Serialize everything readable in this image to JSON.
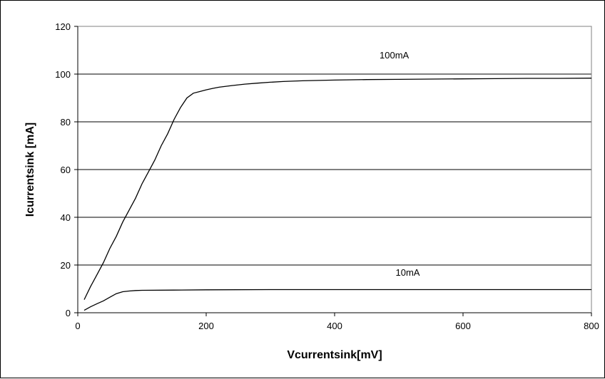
{
  "chart_data": {
    "type": "line",
    "title": "",
    "xlabel": "Vcurrentsink[mV]",
    "ylabel": "Icurrentsink [mA]",
    "xlim": [
      0,
      800
    ],
    "ylim": [
      0,
      120
    ],
    "x_ticks": [
      0,
      200,
      400,
      600,
      800
    ],
    "y_ticks": [
      0,
      20,
      40,
      60,
      80,
      100,
      120
    ],
    "grid": "horizontal",
    "legend": "none",
    "colors": {
      "line": "#000000",
      "grid": "#000000",
      "plot_border": "#808080",
      "background": "#ffffff"
    },
    "series": [
      {
        "label": "100mA",
        "x": [
          10,
          20,
          30,
          40,
          50,
          60,
          70,
          80,
          90,
          100,
          110,
          120,
          130,
          140,
          150,
          160,
          170,
          180,
          190,
          200,
          210,
          220,
          240,
          260,
          280,
          300,
          320,
          350,
          400,
          450,
          500,
          550,
          600,
          650,
          700,
          750,
          800
        ],
        "y": [
          5.5,
          11,
          16,
          21,
          27,
          32,
          38,
          43,
          48,
          54,
          59,
          64,
          70,
          75,
          81,
          86,
          90,
          92,
          92.7,
          93.4,
          94,
          94.5,
          95.2,
          95.8,
          96.2,
          96.6,
          96.9,
          97.2,
          97.5,
          97.7,
          97.8,
          97.9,
          98,
          98.1,
          98.2,
          98.2,
          98.3
        ]
      },
      {
        "label": "10mA",
        "x": [
          10,
          20,
          30,
          40,
          50,
          60,
          70,
          80,
          90,
          100,
          150,
          200,
          300,
          400,
          500,
          600,
          700,
          800
        ],
        "y": [
          1,
          2.5,
          3.8,
          5,
          6.5,
          8,
          8.8,
          9.1,
          9.3,
          9.4,
          9.5,
          9.6,
          9.7,
          9.7,
          9.7,
          9.7,
          9.7,
          9.7
        ]
      }
    ],
    "annotations": [
      {
        "text": "100mA",
        "x": 470,
        "y": 106.5
      },
      {
        "text": "10mA",
        "x": 495,
        "y": 15.5
      }
    ]
  }
}
